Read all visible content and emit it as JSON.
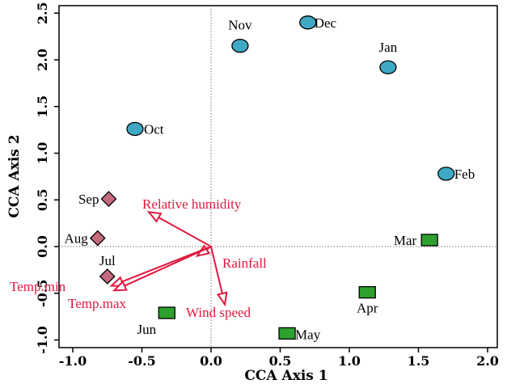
{
  "chart_data": {
    "type": "scatter",
    "xlabel": "CCA Axis 1",
    "ylabel": "CCA Axis 2",
    "xlim": [
      -1.0,
      2.0
    ],
    "ylim": [
      -1.0,
      2.5
    ],
    "x_ticks": [
      "-1.0",
      "-0.5",
      "0.0",
      "0.5",
      "1.0",
      "1.5",
      "2.0"
    ],
    "y_ticks": [
      "-1.0",
      "-0.5",
      "0.0",
      "0.5",
      "1.0",
      "1.5",
      "2.0",
      "2.5"
    ],
    "reference_lines": {
      "x": 0,
      "y": 0,
      "style": "dotted"
    },
    "series": [
      {
        "shape": "circle",
        "color": "#3fa9c5",
        "points": [
          {
            "label": "Nov",
            "x": 0.21,
            "y": 2.15
          },
          {
            "label": "Dec",
            "x": 0.7,
            "y": 2.4
          },
          {
            "label": "Jan",
            "x": 1.28,
            "y": 1.92
          },
          {
            "label": "Oct",
            "x": -0.55,
            "y": 1.26
          },
          {
            "label": "Feb",
            "x": 1.7,
            "y": 0.78
          }
        ]
      },
      {
        "shape": "diamond",
        "color": "#c46a7e",
        "points": [
          {
            "label": "Sep",
            "x": -0.74,
            "y": 0.51
          },
          {
            "label": "Aug",
            "x": -0.82,
            "y": 0.09
          },
          {
            "label": "Jul",
            "x": -0.75,
            "y": -0.32
          }
        ]
      },
      {
        "shape": "square",
        "color": "#2ea02e",
        "points": [
          {
            "label": "Mar",
            "x": 1.58,
            "y": 0.07
          },
          {
            "label": "Apr",
            "x": 1.13,
            "y": -0.49
          },
          {
            "label": "Jun",
            "x": -0.32,
            "y": -0.71
          },
          {
            "label": "May",
            "x": 0.55,
            "y": -0.93
          }
        ]
      }
    ],
    "vectors": {
      "color": "#e0193f",
      "items": [
        {
          "label": "Relative humidity",
          "x": -0.45,
          "y": 0.37
        },
        {
          "label": "Rainfall",
          "x": -0.1,
          "y": -0.1
        },
        {
          "label": "Temp.min",
          "x": -0.72,
          "y": -0.42
        },
        {
          "label": "Temp.max",
          "x": -0.7,
          "y": -0.47
        },
        {
          "label": "Wind speed",
          "x": 0.1,
          "y": -0.62
        }
      ]
    }
  }
}
